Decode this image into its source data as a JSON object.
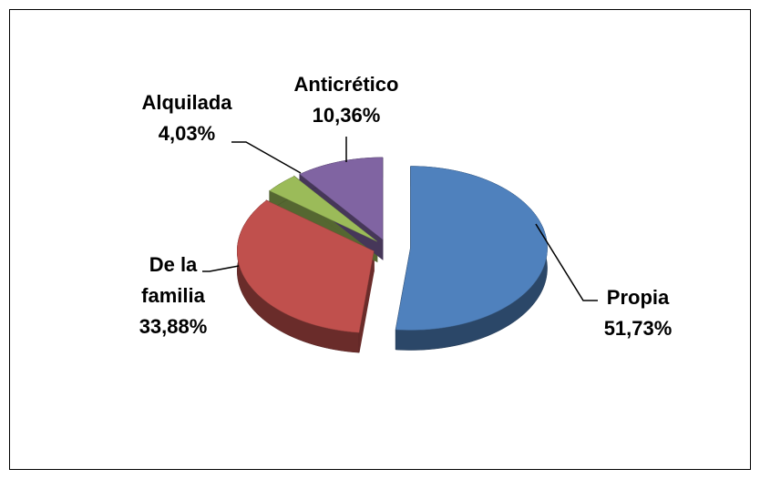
{
  "chart_data": {
    "type": "pie",
    "categories": [
      "Propia",
      "De la familia",
      "Alquilada",
      "Anticrético"
    ],
    "values": [
      51.73,
      33.88,
      4.03,
      10.36
    ],
    "value_labels": [
      "51,73%",
      "33,88%",
      "4,03%",
      "10,36%"
    ],
    "colors": [
      "#4f81bd",
      "#c0504d",
      "#9bbb59",
      "#8064a2"
    ]
  }
}
